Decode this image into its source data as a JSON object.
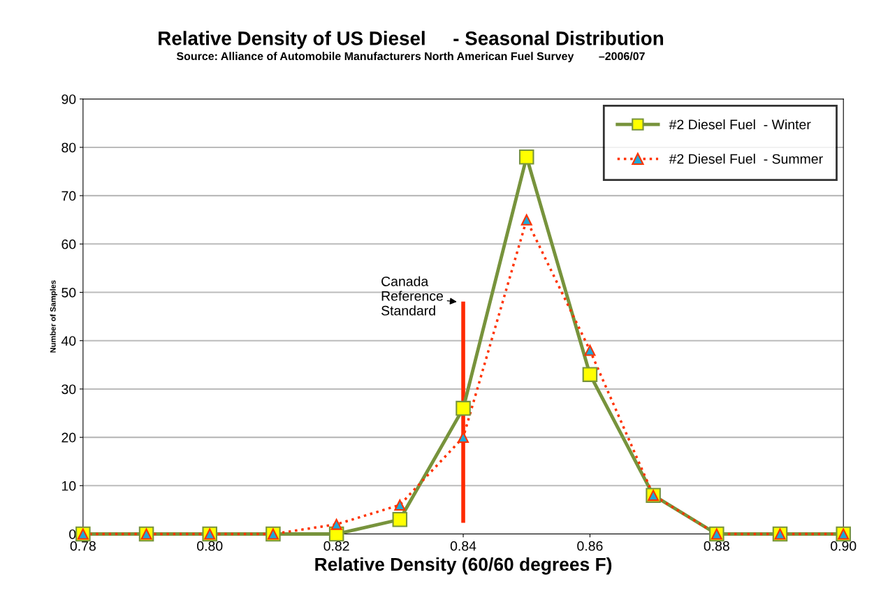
{
  "chart_data": {
    "type": "line",
    "title": "Relative Density of US Diesel     - Seasonal Distribution",
    "subtitle": "Source: Alliance of Automobile Manufacturers North American Fuel Survey        –2006/07",
    "xlabel": "Relative Density (60/60 degrees F)",
    "ylabel": "Number of Samples",
    "x": [
      0.78,
      0.79,
      0.8,
      0.81,
      0.82,
      0.83,
      0.84,
      0.85,
      0.86,
      0.87,
      0.88,
      0.89,
      0.9
    ],
    "series": [
      {
        "name": "#2 Diesel Fuel  - Winter",
        "color": "#77933c",
        "marker": "square",
        "colors": [
          "#ffff00",
          "#ffff00",
          "#ffff00",
          "#ffff00",
          "#ffff00",
          "#ffff00",
          "#ffff00",
          "#ffff00",
          "#ffff00",
          "#ffff00",
          "#ffff00",
          "#ffff00",
          "#ffff00"
        ],
        "line_style": "solid",
        "values": [
          0,
          0,
          0,
          0,
          0,
          3,
          26,
          78,
          33,
          8,
          0,
          0,
          0
        ]
      },
      {
        "name": "#2 Diesel Fuel  - Summer",
        "color": "#ff3300",
        "marker": "triangle",
        "colors": [
          "#1fa8d8",
          "#1fa8d8",
          "#1fa8d8",
          "#1fa8d8",
          "#1fa8d8",
          "#1fa8d8",
          "#1fa8d8",
          "#1fa8d8",
          "#1fa8d8",
          "#1fa8d8",
          "#1fa8d8",
          "#1fa8d8",
          "#1fa8d8"
        ],
        "line_style": "dotted",
        "values": [
          0,
          0,
          0,
          0,
          2,
          6,
          20,
          65,
          38,
          8,
          0,
          0,
          0
        ]
      }
    ],
    "xlim": [
      0.78,
      0.9
    ],
    "xticks": [
      {
        "value": 0.78,
        "label": "0.78"
      },
      {
        "value": 0.8,
        "label": "0.80"
      },
      {
        "value": 0.82,
        "label": "0.82"
      },
      {
        "value": 0.84,
        "label": "0.84"
      },
      {
        "value": 0.86,
        "label": "0.86"
      },
      {
        "value": 0.88,
        "label": "0.88"
      },
      {
        "value": 0.9,
        "label": "0.90"
      }
    ],
    "ylim": [
      0,
      90
    ],
    "yticks": [
      0,
      10,
      20,
      30,
      40,
      50,
      60,
      70,
      80,
      90
    ],
    "ref_lines": [
      {
        "axis": "x",
        "value": 0.84,
        "label": "Canada\nReference\nStandard",
        "color": "#ff2a00"
      }
    ],
    "grid": "y",
    "legend": "top right"
  }
}
